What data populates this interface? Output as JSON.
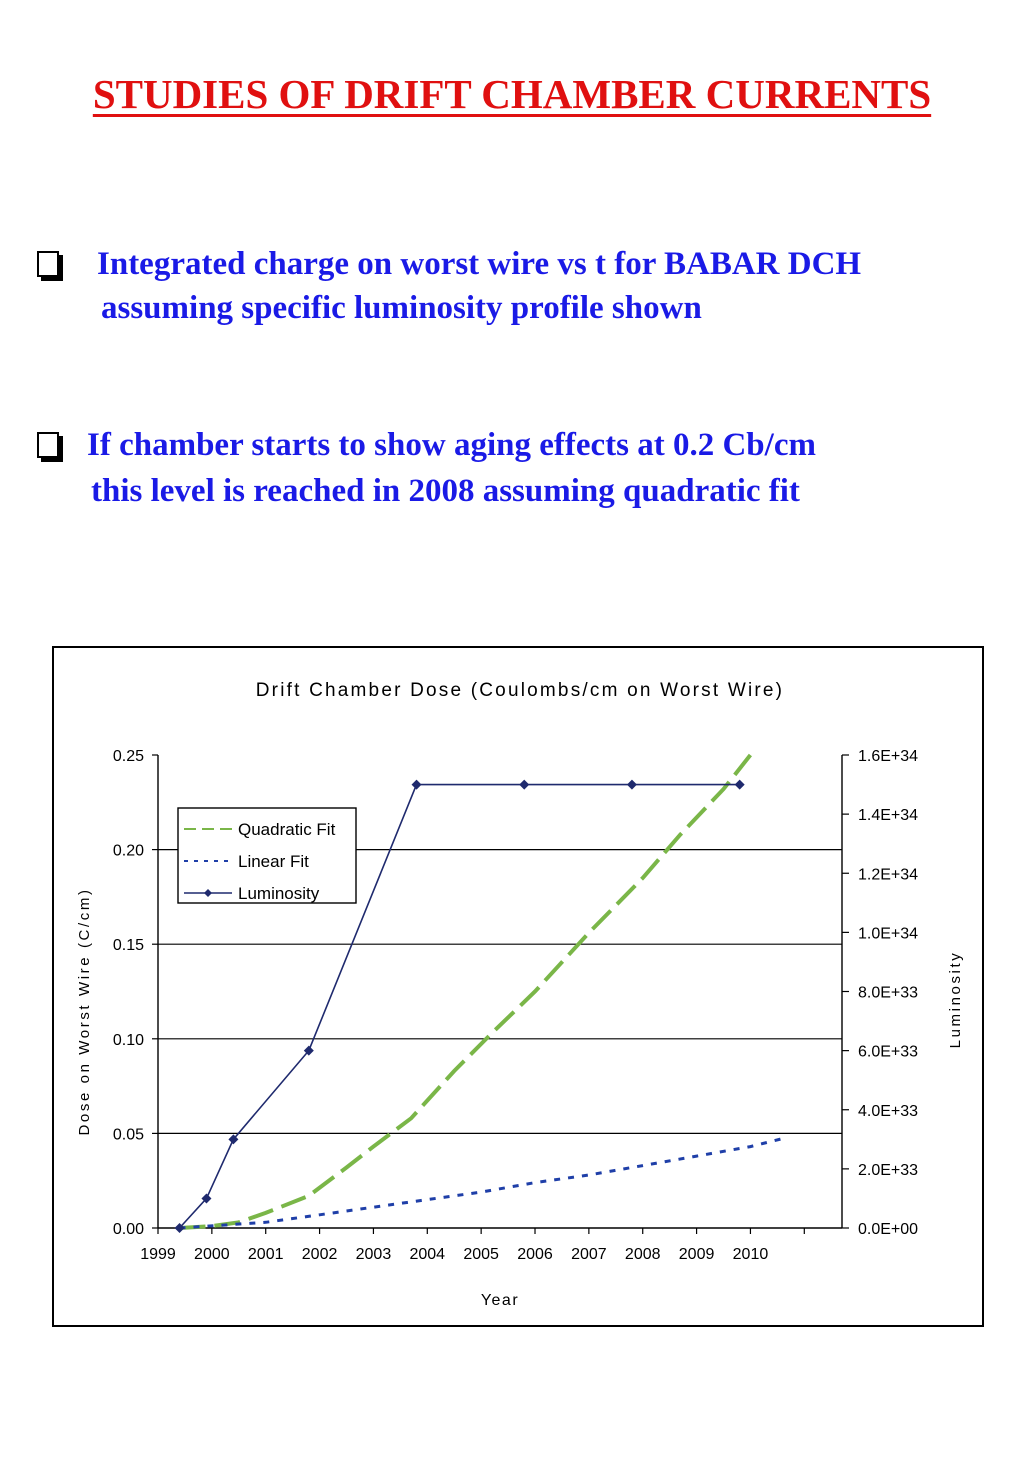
{
  "page": {
    "title": "STUDIES OF DRIFT CHAMBER CURRENTS",
    "bullets": [
      {
        "line1": "Integrated charge on worst wire vs t for BABAR DCH",
        "line2": "assuming specific luminosity profile shown"
      },
      {
        "line1": "If chamber starts to show aging effects at 0.2 Cb/cm",
        "line2": "this level is reached in 2008 assuming quadratic fit"
      }
    ]
  },
  "chart_data": {
    "type": "line",
    "title": "Drift Chamber Dose (Coulombs/cm on Worst Wire)",
    "xlabel": "Year",
    "ylabel": "Dose on Worst Wire (C/cm)",
    "y2label": "Luminosity",
    "x_ticks": [
      "1999",
      "2000",
      "2001",
      "2002",
      "2003",
      "2004",
      "2005",
      "2006",
      "2007",
      "2008",
      "2009",
      "2010"
    ],
    "xlim": [
      1999,
      2011.7
    ],
    "ylim": [
      0,
      0.25
    ],
    "y_ticks": [
      "0.00",
      "0.05",
      "0.10",
      "0.15",
      "0.20",
      "0.25"
    ],
    "y2lim": [
      0,
      1.6e+34
    ],
    "y2_ticks": [
      "0.0E+00",
      "2.0E+33",
      "4.0E+33",
      "6.0E+33",
      "8.0E+33",
      "1.0E+34",
      "1.2E+34",
      "1.4E+34",
      "1.6E+34"
    ],
    "grid": "horizontal major gridlines",
    "legend_position": "upper-left",
    "series": [
      {
        "name": "Quadratic Fit",
        "axis": "left",
        "style": "dashed",
        "color": "#7ab648",
        "x": [
          1999.4,
          2000.0,
          2000.5,
          2001.0,
          2001.8,
          2002.5,
          2003.0,
          2003.7,
          2004.5,
          2005.2,
          2006.0,
          2007.0,
          2008.0,
          2008.7,
          2009.5,
          2010.0
        ],
        "y": [
          0.0,
          0.001,
          0.003,
          0.008,
          0.017,
          0.032,
          0.043,
          0.058,
          0.083,
          0.103,
          0.125,
          0.156,
          0.185,
          0.208,
          0.232,
          0.25
        ]
      },
      {
        "name": "Linear Fit",
        "axis": "left",
        "style": "dotted",
        "color": "#1f3fa8",
        "x": [
          1999.4,
          2001.0,
          2002.0,
          2003.0,
          2004.0,
          2005.0,
          2006.0,
          2007.0,
          2008.0,
          2009.0,
          2010.0,
          2010.7
        ],
        "y": [
          0.0,
          0.003,
          0.007,
          0.011,
          0.015,
          0.019,
          0.024,
          0.028,
          0.033,
          0.038,
          0.043,
          0.048
        ]
      },
      {
        "name": "Luminosity",
        "axis": "right",
        "style": "solid",
        "marker": "diamond",
        "color": "#1f2a6e",
        "x": [
          1999.4,
          1999.9,
          2000.4,
          2001.8,
          2003.8,
          2005.8,
          2007.8,
          2009.8
        ],
        "y": [
          0,
          1e+33,
          3e+33,
          6e+33,
          1.5e+34,
          1.5e+34,
          1.5e+34,
          1.5e+34
        ]
      }
    ]
  }
}
